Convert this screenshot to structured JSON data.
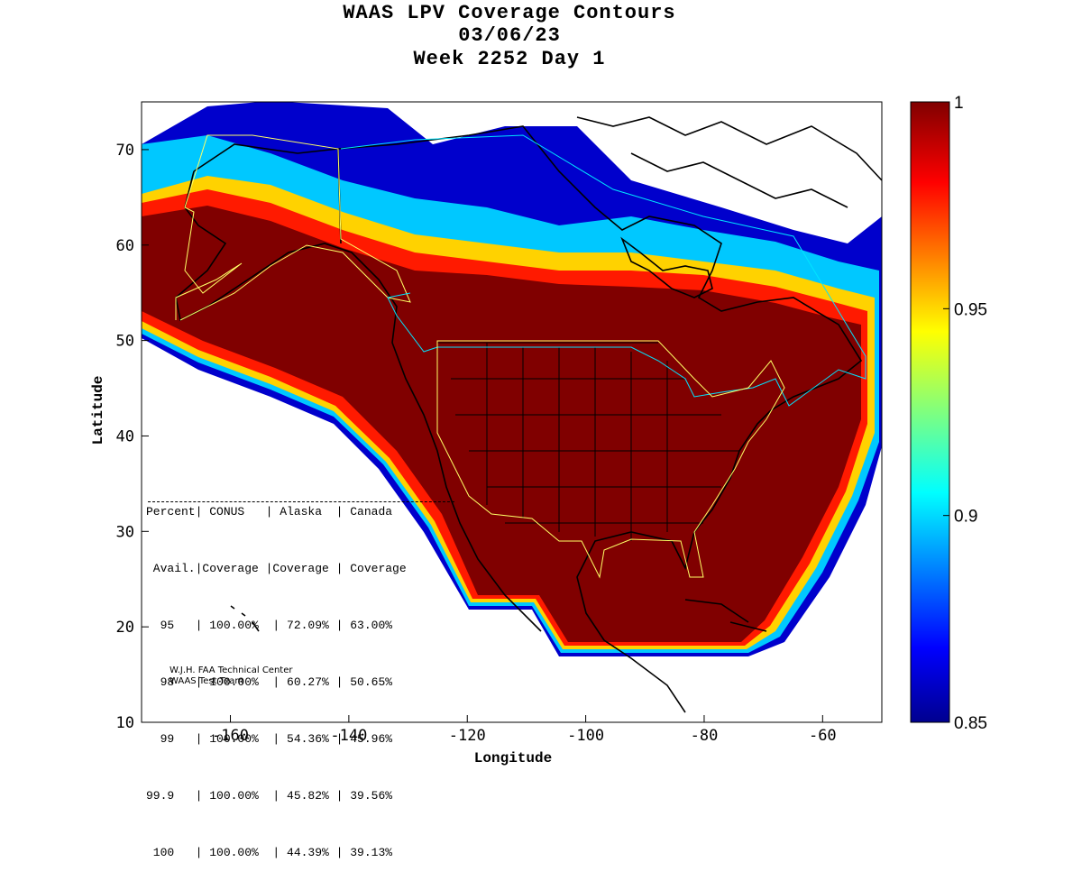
{
  "title": {
    "line1": "WAAS LPV Coverage Contours",
    "line2": "03/06/23",
    "line3": "Week 2252 Day 1"
  },
  "axes": {
    "xlabel": "Longitude",
    "ylabel": "Latitude",
    "x_ticks": [
      "-160",
      "-140",
      "-120",
      "-100",
      "-80",
      "-60"
    ],
    "y_ticks": [
      "10",
      "20",
      "30",
      "40",
      "50",
      "60",
      "70"
    ],
    "xlim": [
      -175,
      -50
    ],
    "ylim": [
      10,
      75
    ]
  },
  "colorbar": {
    "colormap": "jet",
    "labels": [
      "1",
      "0.95",
      "0.9",
      "0.85"
    ],
    "range": [
      0.85,
      1
    ]
  },
  "colors": {
    "background": "#ffffff",
    "ocean_default": "#ffffff",
    "max_coverage": "#800000",
    "coastline": "#000000",
    "service_area_outline": "#ffff66",
    "canada_outline": "#00e5ff"
  },
  "stats_table": {
    "header1": "Percent| CONUS   | Alaska  | Canada",
    "header2": " Avail.|Coverage |Coverage | Coverage",
    "rule": "------------------------------------------",
    "rows": [
      "  95   | 100.00%  | 72.09% | 63.00%",
      "  98   | 100.00%  | 60.27% | 50.65%",
      "  99   | 100.00%  | 54.36% | 45.96%",
      "99.9   | 100.00%  | 45.82% | 39.56%",
      " 100   | 100.00%  | 44.39% | 39.13%"
    ]
  },
  "credits": {
    "line1": "W.J.H. FAA Technical Center",
    "line2": "WAAS Test Team"
  }
}
